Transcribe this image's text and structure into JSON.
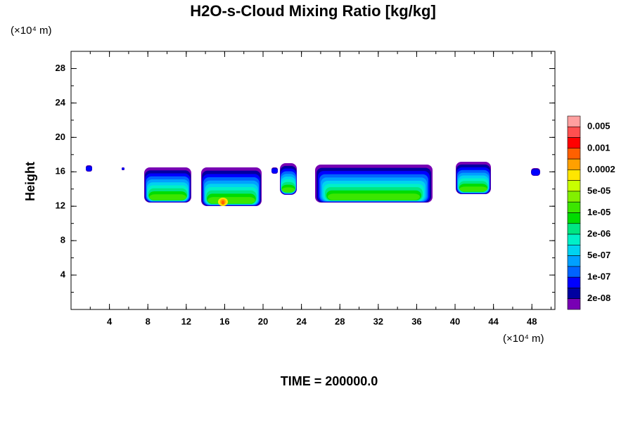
{
  "chart_data": {
    "type": "contour",
    "title": "H2O-s-Cloud Mixing Ratio [kg/kg]",
    "y_unit": "(×10⁴ m)",
    "x_unit": "(×10⁴ m)",
    "ylabel": "Height",
    "footer": "TIME = 200000.0",
    "xlim": [
      0,
      50.4
    ],
    "ylim": [
      0,
      30
    ],
    "xticks": [
      4,
      8,
      12,
      16,
      20,
      24,
      28,
      32,
      36,
      40,
      44,
      48
    ],
    "yticks": [
      4,
      8,
      12,
      16,
      20,
      24,
      28
    ],
    "minor_step": 2,
    "colorbar": {
      "colors": [
        "#ffa0a0",
        "#ff5050",
        "#ff0000",
        "#ff6000",
        "#ffa000",
        "#ffe600",
        "#c8ff00",
        "#82f000",
        "#3ce600",
        "#00dc00",
        "#00e682",
        "#00f0c8",
        "#00d2f0",
        "#00a0ff",
        "#0064ff",
        "#0000ff",
        "#0000a0",
        "#7800b4"
      ],
      "labels": [
        "0.005",
        "0.001",
        "0.0002",
        "5e-05",
        "1e-05",
        "2e-06",
        "5e-07",
        "1e-07",
        "2e-08"
      ]
    }
  }
}
